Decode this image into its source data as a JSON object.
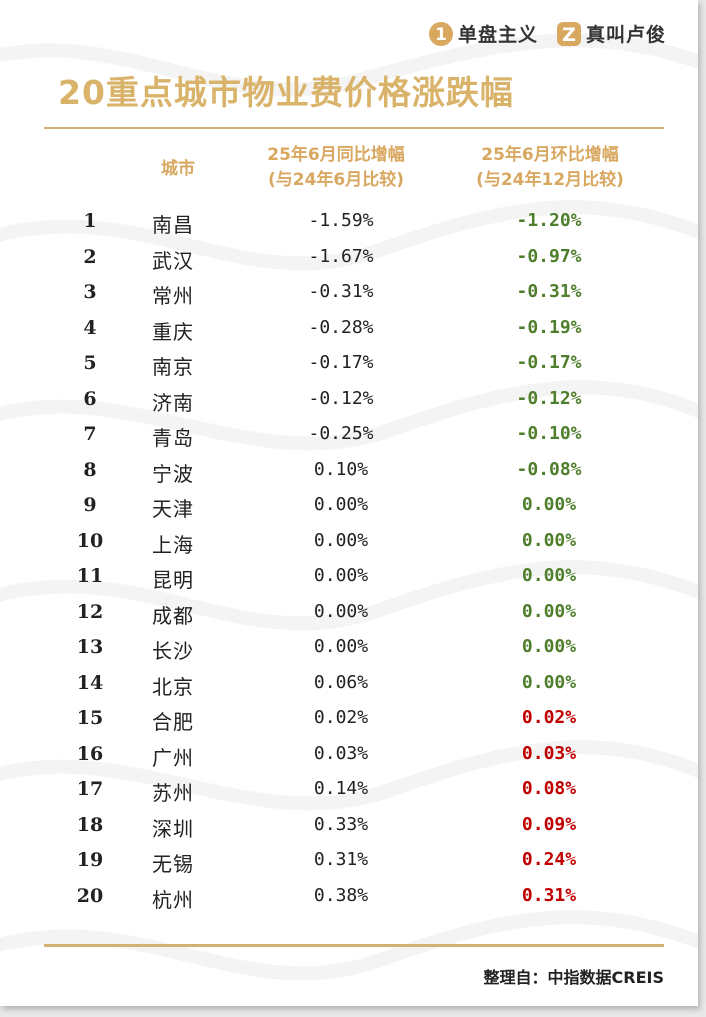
{
  "brands": [
    {
      "logo": "1",
      "name": "单盘主义"
    },
    {
      "logo": "Z",
      "name": "真叫卢俊"
    }
  ],
  "title": "20重点城市物业费价格涨跌幅",
  "header": {
    "city": "城市",
    "yoy_line1": "25年6月同比增幅",
    "yoy_line2": "(与24年6月比较)",
    "mom_line1": "25年6月环比增幅",
    "mom_line2": "(与24年12月比较)"
  },
  "colors": {
    "accent": "#d9b36a",
    "negative_or_zero": "#4f7f2c",
    "positive": "#c00000"
  },
  "rows": [
    {
      "rank": "1",
      "city": "南昌",
      "yoy": "-1.59%",
      "mom": "-1.20%",
      "mom_tone": "green"
    },
    {
      "rank": "2",
      "city": "武汉",
      "yoy": "-1.67%",
      "mom": "-0.97%",
      "mom_tone": "green"
    },
    {
      "rank": "3",
      "city": "常州",
      "yoy": "-0.31%",
      "mom": "-0.31%",
      "mom_tone": "green"
    },
    {
      "rank": "4",
      "city": "重庆",
      "yoy": "-0.28%",
      "mom": "-0.19%",
      "mom_tone": "green"
    },
    {
      "rank": "5",
      "city": "南京",
      "yoy": "-0.17%",
      "mom": "-0.17%",
      "mom_tone": "green"
    },
    {
      "rank": "6",
      "city": "济南",
      "yoy": "-0.12%",
      "mom": "-0.12%",
      "mom_tone": "green"
    },
    {
      "rank": "7",
      "city": "青岛",
      "yoy": "-0.25%",
      "mom": "-0.10%",
      "mom_tone": "green"
    },
    {
      "rank": "8",
      "city": "宁波",
      "yoy": "0.10%",
      "mom": "-0.08%",
      "mom_tone": "green"
    },
    {
      "rank": "9",
      "city": "天津",
      "yoy": "0.00%",
      "mom": "0.00%",
      "mom_tone": "green"
    },
    {
      "rank": "10",
      "city": "上海",
      "yoy": "0.00%",
      "mom": "0.00%",
      "mom_tone": "green"
    },
    {
      "rank": "11",
      "city": "昆明",
      "yoy": "0.00%",
      "mom": "0.00%",
      "mom_tone": "green"
    },
    {
      "rank": "12",
      "city": "成都",
      "yoy": "0.00%",
      "mom": "0.00%",
      "mom_tone": "green"
    },
    {
      "rank": "13",
      "city": "长沙",
      "yoy": "0.00%",
      "mom": "0.00%",
      "mom_tone": "green"
    },
    {
      "rank": "14",
      "city": "北京",
      "yoy": "0.06%",
      "mom": "0.00%",
      "mom_tone": "green"
    },
    {
      "rank": "15",
      "city": "合肥",
      "yoy": "0.02%",
      "mom": "0.02%",
      "mom_tone": "red"
    },
    {
      "rank": "16",
      "city": "广州",
      "yoy": "0.03%",
      "mom": "0.03%",
      "mom_tone": "red"
    },
    {
      "rank": "17",
      "city": "苏州",
      "yoy": "0.14%",
      "mom": "0.08%",
      "mom_tone": "red"
    },
    {
      "rank": "18",
      "city": "深圳",
      "yoy": "0.33%",
      "mom": "0.09%",
      "mom_tone": "red"
    },
    {
      "rank": "19",
      "city": "无锡",
      "yoy": "0.31%",
      "mom": "0.24%",
      "mom_tone": "red"
    },
    {
      "rank": "20",
      "city": "杭州",
      "yoy": "0.38%",
      "mom": "0.31%",
      "mom_tone": "red"
    }
  ],
  "source": "整理自：中指数据CREIS"
}
